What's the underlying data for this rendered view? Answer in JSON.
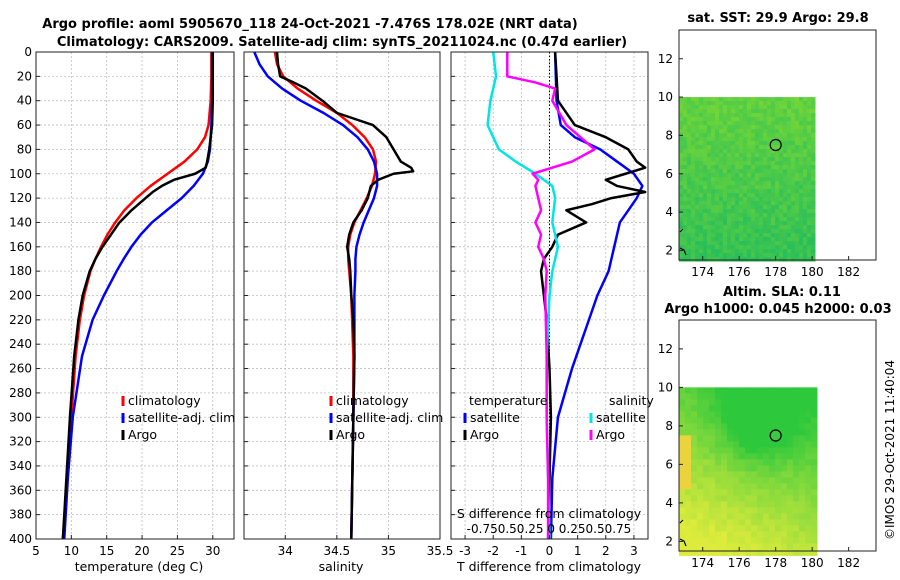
{
  "header": {
    "title_line1": "Argo profile: aoml 5905670_118 24-Oct-2021 -7.476S 178.02E (NRT data)",
    "title_line2": "Climatology: CARS2009. Satellite-adj clim: synTS_20211024.nc (0.47d earlier)"
  },
  "colors": {
    "climatology": "#ff0000",
    "satellite": "#0000ff",
    "argo": "#000000",
    "sat_salinity": "#00e5e5",
    "argo_salinity": "#ff00ff"
  },
  "chart_data": [
    {
      "id": "temperature",
      "type": "line",
      "xlabel": "temperature (deg C)",
      "xlim": [
        5,
        33
      ],
      "ylim": [
        0,
        400
      ],
      "xticks": [
        5,
        10,
        15,
        20,
        25,
        30
      ],
      "yticks": [
        0,
        20,
        40,
        60,
        80,
        100,
        120,
        140,
        160,
        180,
        200,
        220,
        240,
        260,
        280,
        300,
        320,
        340,
        360,
        380,
        400
      ],
      "legend": [
        "climatology",
        "satellite-adj. clim",
        "Argo"
      ],
      "series": [
        {
          "name": "climatology",
          "color": "#ff0000",
          "depth": [
            0,
            20,
            40,
            60,
            70,
            80,
            90,
            100,
            110,
            120,
            130,
            140,
            150,
            160,
            170,
            180,
            200,
            220,
            250,
            300,
            350,
            400
          ],
          "values": [
            29.8,
            29.8,
            29.7,
            29.4,
            28.9,
            27.8,
            26.0,
            23.6,
            21.2,
            19.2,
            17.5,
            16.2,
            15.1,
            14.2,
            13.4,
            12.7,
            11.8,
            11.2,
            10.6,
            10.0,
            9.4,
            8.8
          ]
        },
        {
          "name": "satellite-adj. clim",
          "color": "#0000ff",
          "depth": [
            0,
            20,
            40,
            60,
            80,
            90,
            100,
            110,
            120,
            130,
            140,
            150,
            160,
            170,
            180,
            200,
            220,
            250,
            300,
            350,
            400
          ],
          "values": [
            29.9,
            29.9,
            29.9,
            29.8,
            29.6,
            29.3,
            28.6,
            27.3,
            25.6,
            23.5,
            21.4,
            19.8,
            18.5,
            17.4,
            16.4,
            14.6,
            13.0,
            11.5,
            10.2,
            9.5,
            9.0
          ]
        },
        {
          "name": "Argo",
          "color": "#000000",
          "depth": [
            0,
            20,
            40,
            60,
            80,
            90,
            95,
            100,
            105,
            110,
            115,
            120,
            130,
            140,
            150,
            160,
            170,
            180,
            200,
            220,
            250,
            300,
            350,
            400
          ],
          "values": [
            30.0,
            30.0,
            30.0,
            29.9,
            29.5,
            29.2,
            29.0,
            27.5,
            24.5,
            22.8,
            21.5,
            20.5,
            18.5,
            16.8,
            15.6,
            14.4,
            13.4,
            12.6,
            11.6,
            11.0,
            10.4,
            9.8,
            9.3,
            8.8
          ]
        }
      ]
    },
    {
      "id": "salinity",
      "type": "line",
      "xlabel": "salinity",
      "xlim": [
        33.6,
        35.5
      ],
      "ylim": [
        0,
        400
      ],
      "xticks": [
        34,
        34.5,
        35,
        35.5
      ],
      "legend": [
        "climatology",
        "satellite-adj. clim",
        "Argo"
      ],
      "series": [
        {
          "name": "climatology",
          "color": "#ff0000",
          "depth": [
            0,
            10,
            20,
            30,
            40,
            50,
            60,
            70,
            80,
            90,
            100,
            110,
            120,
            130,
            140,
            150,
            160,
            170,
            180,
            200,
            250,
            300,
            350,
            400
          ],
          "values": [
            33.9,
            33.92,
            33.98,
            34.12,
            34.3,
            34.5,
            34.65,
            34.77,
            34.85,
            34.88,
            34.87,
            34.84,
            34.79,
            34.73,
            34.67,
            34.63,
            34.61,
            34.61,
            34.62,
            34.64,
            34.66,
            34.66,
            34.65,
            34.64
          ]
        },
        {
          "name": "satellite-adj. clim",
          "color": "#0000ff",
          "depth": [
            0,
            10,
            20,
            30,
            40,
            50,
            60,
            70,
            80,
            90,
            100,
            110,
            120,
            130,
            140,
            150,
            160,
            170,
            180,
            200,
            250,
            300,
            350,
            400
          ],
          "values": [
            33.7,
            33.75,
            33.83,
            33.97,
            34.15,
            34.37,
            34.56,
            34.7,
            34.8,
            34.86,
            34.89,
            34.89,
            34.86,
            34.81,
            34.76,
            34.72,
            34.69,
            34.68,
            34.68,
            34.67,
            34.67,
            34.66,
            34.65,
            34.64
          ]
        },
        {
          "name": "Argo",
          "color": "#000000",
          "depth": [
            0,
            10,
            20,
            25,
            30,
            40,
            50,
            60,
            70,
            80,
            90,
            95,
            98,
            100,
            105,
            110,
            120,
            130,
            140,
            150,
            160,
            170,
            180,
            200,
            220,
            250,
            300,
            350,
            400
          ],
          "values": [
            33.92,
            33.93,
            33.95,
            34.08,
            34.2,
            34.36,
            34.5,
            34.85,
            34.98,
            35.05,
            35.12,
            35.22,
            35.24,
            35.05,
            34.9,
            34.83,
            34.8,
            34.74,
            34.66,
            34.62,
            34.6,
            34.62,
            34.63,
            34.64,
            34.66,
            34.67,
            34.66,
            34.65,
            34.64
          ]
        }
      ]
    },
    {
      "id": "difference",
      "type": "line",
      "xlabel": "T difference from climatology",
      "xlabel_top": "S difference from climatology",
      "xlim": [
        -3.5,
        3.5
      ],
      "ylim": [
        0,
        400
      ],
      "xticks": [
        -3,
        -2,
        -1,
        0,
        1,
        2,
        3
      ],
      "top_ticks": "-0.750.50.25 0 0.250.50.75",
      "legend_left_title": "temperature",
      "legend_right_title": "salinity",
      "legend_left": [
        "satellite",
        "Argo"
      ],
      "legend_right": [
        "satellite",
        "Argo"
      ],
      "series": [
        {
          "name": "T satellite",
          "color": "#0000ff",
          "depth": [
            0,
            40,
            60,
            70,
            80,
            90,
            100,
            110,
            120,
            130,
            140,
            160,
            180,
            200,
            220,
            260,
            300,
            350,
            400
          ],
          "values": [
            0.2,
            0.25,
            0.4,
            0.9,
            1.8,
            2.4,
            3.0,
            3.3,
            3.1,
            2.8,
            2.5,
            2.3,
            2.1,
            1.7,
            1.4,
            0.8,
            0.3,
            0.1,
            0.05
          ]
        },
        {
          "name": "T Argo",
          "color": "#000000",
          "depth": [
            0,
            20,
            40,
            60,
            70,
            80,
            90,
            95,
            100,
            105,
            110,
            115,
            120,
            125,
            130,
            140,
            150,
            160,
            170,
            180,
            200,
            220,
            260,
            300,
            350,
            400
          ],
          "values": [
            0.2,
            0.25,
            0.3,
            0.9,
            2.0,
            2.8,
            3.1,
            3.4,
            2.7,
            2.0,
            2.4,
            3.4,
            2.2,
            1.5,
            0.6,
            1.3,
            0.3,
            0.1,
            -0.2,
            -0.3,
            -0.2,
            -0.1,
            0,
            0.05,
            0.0,
            -0.05
          ]
        },
        {
          "name": "S satellite",
          "color": "#00e5e5",
          "depth": [
            0,
            20,
            40,
            60,
            80,
            90,
            100,
            110,
            120,
            140,
            160,
            180,
            200,
            250,
            300,
            350,
            400
          ],
          "values": [
            -2.0,
            -1.9,
            -2.1,
            -2.2,
            -1.8,
            -1.2,
            -0.5,
            0.1,
            0.2,
            0.1,
            0.3,
            0.1,
            0.0,
            -0.1,
            -0.1,
            -0.05,
            0.0
          ]
        },
        {
          "name": "S Argo",
          "color": "#ff00ff",
          "depth": [
            0,
            20,
            25,
            30,
            40,
            60,
            70,
            80,
            90,
            100,
            105,
            110,
            120,
            130,
            140,
            150,
            160,
            170,
            180,
            200,
            250,
            300,
            350,
            400
          ],
          "values": [
            -1.5,
            -1.5,
            -0.5,
            0.2,
            0.1,
            0.6,
            1.1,
            1.6,
            0.8,
            -0.6,
            -0.4,
            -0.5,
            -0.4,
            -0.3,
            -0.5,
            -0.3,
            -0.4,
            -0.2,
            -0.1,
            -0.15,
            -0.1,
            -0.1,
            -0.05,
            -0.05
          ]
        }
      ]
    },
    {
      "id": "sst_map",
      "type": "heatmap",
      "title": "sat. SST: 29.9 Argo: 29.8",
      "xlim": [
        172.7,
        183.5
      ],
      "ylim": [
        1.5,
        13.5
      ],
      "xticks": [
        174,
        176,
        178,
        180,
        182
      ],
      "yticks": [
        2,
        4,
        6,
        8,
        10,
        12
      ],
      "data_extent": {
        "lon": [
          172.7,
          180
        ],
        "lat": [
          1.5,
          10
        ]
      },
      "argo_position": {
        "lon": 178,
        "lat": 7.5
      }
    },
    {
      "id": "sla_map",
      "type": "heatmap",
      "title_line1": "Altim. SLA: 0.11",
      "title_line2": "Argo h1000: 0.045 h2000: 0.03",
      "xlim": [
        172.7,
        183.5
      ],
      "ylim": [
        1.5,
        13.5
      ],
      "xticks": [
        174,
        176,
        178,
        180,
        182
      ],
      "yticks": [
        2,
        4,
        6,
        8,
        10,
        12
      ],
      "data_extent": {
        "lon": [
          172.7,
          180
        ],
        "lat": [
          1.5,
          10
        ]
      },
      "argo_position": {
        "lon": 178,
        "lat": 7.5
      }
    }
  ],
  "footer": {
    "copyright": "©IMOS 29-Oct-2021 11:40:04"
  }
}
